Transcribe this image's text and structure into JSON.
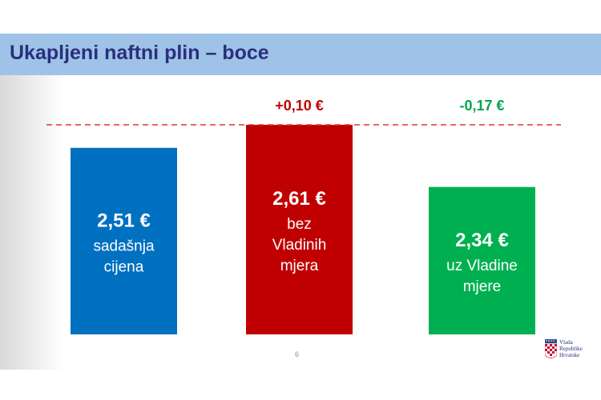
{
  "slide": {
    "title": "Ukapljeni naftni plin – boce",
    "page_number": "6",
    "logo_text": [
      "Vlada",
      "Republike",
      "Hrvatske"
    ]
  },
  "colors": {
    "title_bar": "#9fc2e7",
    "title_text": "#2a2f7d",
    "reference_line": "#e0332e",
    "increase_text": "#c00000",
    "decrease_text": "#00a54f"
  },
  "chart_data": {
    "type": "bar",
    "categories": [
      "sadašnja cijena",
      "bez Vladinih mjera",
      "uz Vladine mjere"
    ],
    "values": [
      2.51,
      2.61,
      2.34
    ],
    "unit": "€",
    "value_labels": [
      "2,51 €",
      "2,61 €",
      "2,34 €"
    ],
    "category_labels": [
      [
        "sadašnja",
        "cijena"
      ],
      [
        "bez",
        "Vladinih",
        "mjera"
      ],
      [
        "uz Vladine",
        "mjere"
      ]
    ],
    "colors": [
      "#0070c0",
      "#c00000",
      "#00b050"
    ],
    "changes": [
      {
        "label": "+0,10 €",
        "bar_index": 1,
        "color": "#c00000"
      },
      {
        "label": "-0,17 €",
        "bar_index": 2,
        "color": "#00a54f"
      }
    ],
    "reference_line": {
      "value": 2.61,
      "style": "dashed"
    },
    "ylim": [
      1.7,
      2.61
    ],
    "grid": false
  }
}
